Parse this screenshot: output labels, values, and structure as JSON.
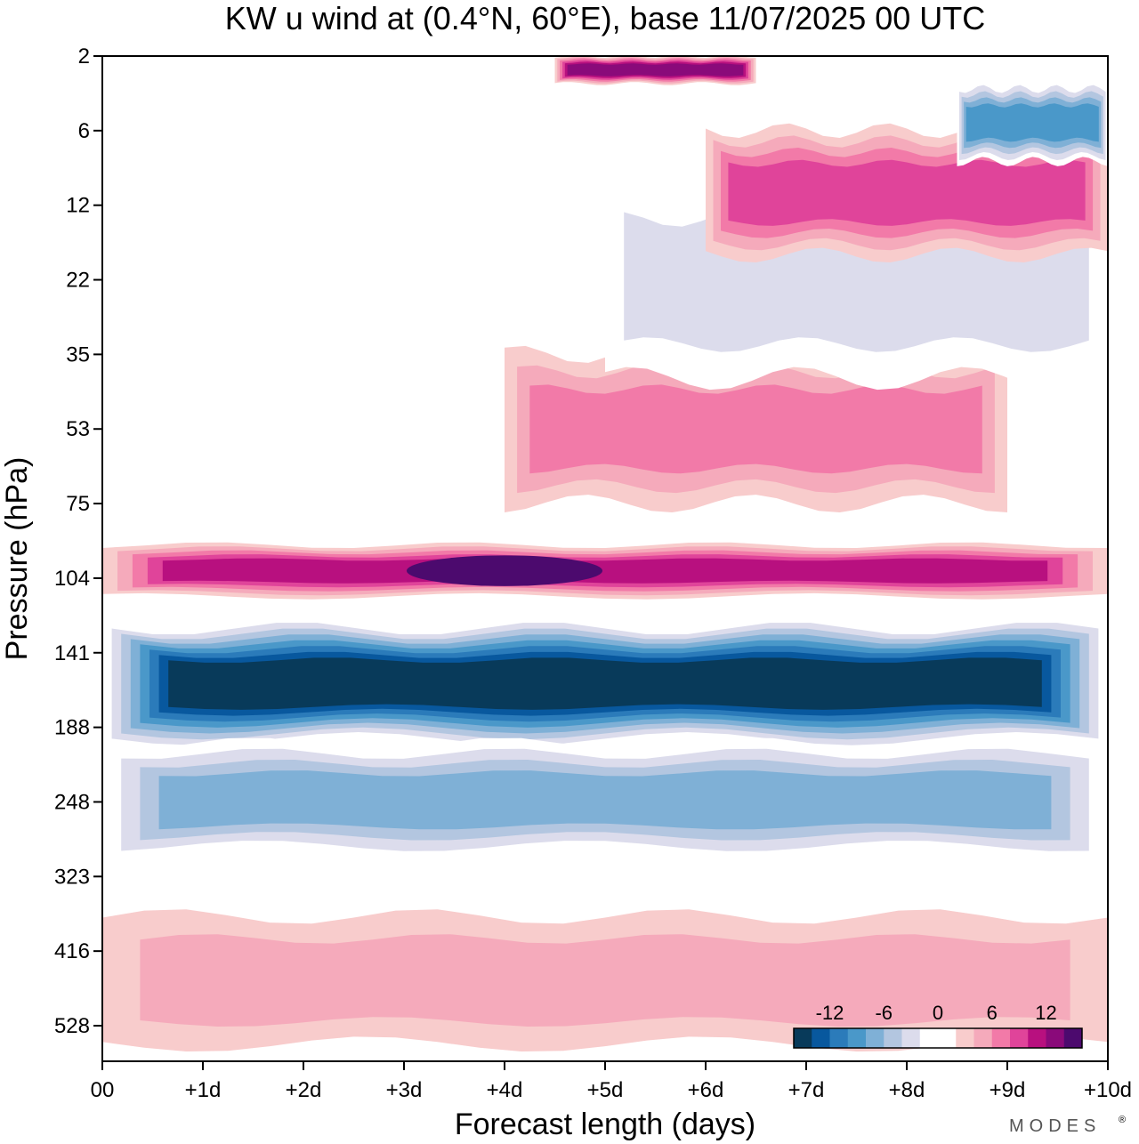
{
  "chart_data": {
    "type": "heatmap",
    "title": "KW u wind at (0.4°N, 60°E),  base 11/07/2025  00 UTC",
    "xlabel": "Forecast length (days)",
    "ylabel": "Pressure (hPa)",
    "x_ticks": [
      "00",
      "+1d",
      "+2d",
      "+3d",
      "+4d",
      "+5d",
      "+6d",
      "+7d",
      "+8d",
      "+9d",
      "+10d"
    ],
    "y_ticks": [
      "2",
      "6",
      "12",
      "22",
      "35",
      "53",
      "75",
      "104",
      "141",
      "188",
      "248",
      "323",
      "416",
      "528"
    ],
    "x_range_days": [
      0,
      10
    ],
    "pressure_levels_hPa": [
      2,
      6,
      12,
      22,
      35,
      53,
      75,
      104,
      141,
      188,
      248,
      323,
      416,
      528
    ],
    "colorbar": {
      "tick_labels": [
        "-12",
        "-6",
        "0",
        "6",
        "12"
      ],
      "tick_values": [
        -12,
        -6,
        0,
        6,
        12
      ],
      "colors": [
        "#083a5a",
        "#08589e",
        "#2b7bba",
        "#4a98c9",
        "#7fb0d6",
        "#b3c6e0",
        "#dcdcec",
        "#ffffff",
        "#ffffff",
        "#f8cccc",
        "#f5aabb",
        "#f27aa8",
        "#e0449a",
        "#b8107f",
        "#8a0a7a",
        "#4c0a6e"
      ]
    },
    "regions": [
      {
        "desc": "strong easterly core",
        "x_days": [
          0,
          10
        ],
        "p_hPa": [
          125,
          200
        ],
        "value": -16
      },
      {
        "desc": "easterly below core",
        "x_days": [
          0,
          10
        ],
        "p_hPa": [
          200,
          300
        ],
        "value": -7
      },
      {
        "desc": "westerly jet",
        "x_days": [
          0,
          10
        ],
        "p_hPa": [
          90,
          112
        ],
        "value": 9,
        "max_value": 14,
        "max_at_days": 4
      },
      {
        "desc": "weak westerly lower troposphere",
        "x_days": [
          0,
          10
        ],
        "p_hPa": [
          370,
          560
        ],
        "value": 3
      },
      {
        "desc": "stratospheric westerly band",
        "x_days": [
          4,
          9
        ],
        "p_hPa": [
          35,
          75
        ],
        "value": 6
      },
      {
        "desc": "stratospheric easterly band",
        "x_days": [
          5,
          10
        ],
        "p_hPa": [
          10,
          40
        ],
        "value": -4
      },
      {
        "desc": "upper westerly",
        "x_days": [
          6,
          10
        ],
        "p_hPa": [
          6,
          18
        ],
        "value": 8
      },
      {
        "desc": "upper easterly",
        "x_days": [
          8.5,
          10
        ],
        "p_hPa": [
          3,
          8
        ],
        "value": -9
      },
      {
        "desc": "upper westerly max",
        "x_days": [
          4.5,
          6.5
        ],
        "p_hPa": [
          2,
          3
        ],
        "value": 12
      }
    ]
  },
  "brand": "MODES",
  "brand_mark": "®"
}
